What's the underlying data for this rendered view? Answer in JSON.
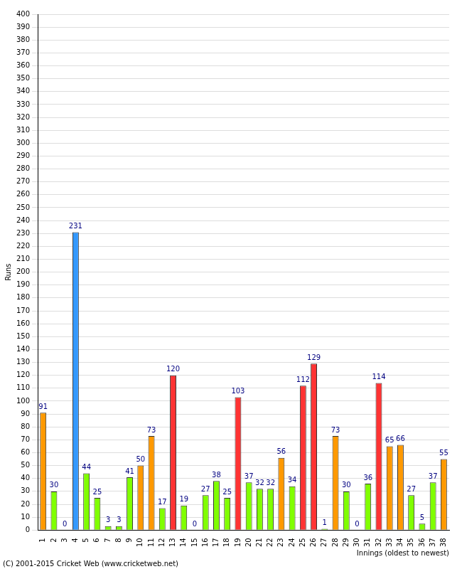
{
  "chart_data": {
    "type": "bar",
    "x_label": "Innings (oldest to newest)",
    "y_label": "Runs",
    "annotations": [
      "(C) 2001-2015 Cricket Web (www.cricketweb.net)"
    ],
    "categories": [
      "1",
      "2",
      "3",
      "4",
      "5",
      "6",
      "7",
      "8",
      "9",
      "10",
      "11",
      "12",
      "13",
      "14",
      "15",
      "16",
      "17",
      "18",
      "19",
      "20",
      "21",
      "22",
      "23",
      "24",
      "25",
      "26",
      "27",
      "28",
      "29",
      "30",
      "31",
      "32",
      "33",
      "34",
      "35",
      "36",
      "37",
      "38"
    ],
    "values": [
      91,
      30,
      0,
      231,
      44,
      25,
      3,
      3,
      41,
      50,
      73,
      17,
      120,
      19,
      0,
      27,
      38,
      25,
      103,
      37,
      32,
      32,
      56,
      34,
      112,
      129,
      1,
      73,
      30,
      0,
      36,
      114,
      65,
      66,
      27,
      5,
      37,
      55
    ],
    "colors": [
      "#ff9900",
      "#80ff00",
      "#80ff00",
      "#3399ff",
      "#80ff00",
      "#80ff00",
      "#80ff00",
      "#80ff00",
      "#80ff00",
      "#ff9900",
      "#ff9900",
      "#80ff00",
      "#ff3333",
      "#80ff00",
      "#80ff00",
      "#80ff00",
      "#80ff00",
      "#80ff00",
      "#ff3333",
      "#80ff00",
      "#80ff00",
      "#80ff00",
      "#ff9900",
      "#80ff00",
      "#ff3333",
      "#ff3333",
      "#80ff00",
      "#ff9900",
      "#80ff00",
      "#80ff00",
      "#80ff00",
      "#ff3333",
      "#ff9900",
      "#ff9900",
      "#80ff00",
      "#80ff00",
      "#80ff00",
      "#ff9900"
    ],
    "ylim": [
      0,
      400
    ],
    "yticks": [
      0,
      10,
      20,
      30,
      40,
      50,
      60,
      70,
      80,
      90,
      100,
      110,
      120,
      130,
      140,
      150,
      160,
      170,
      180,
      190,
      200,
      210,
      220,
      230,
      240,
      250,
      260,
      270,
      280,
      290,
      300,
      310,
      320,
      330,
      340,
      350,
      360,
      370,
      380,
      390,
      400
    ],
    "grid": true,
    "data_labels": true
  }
}
